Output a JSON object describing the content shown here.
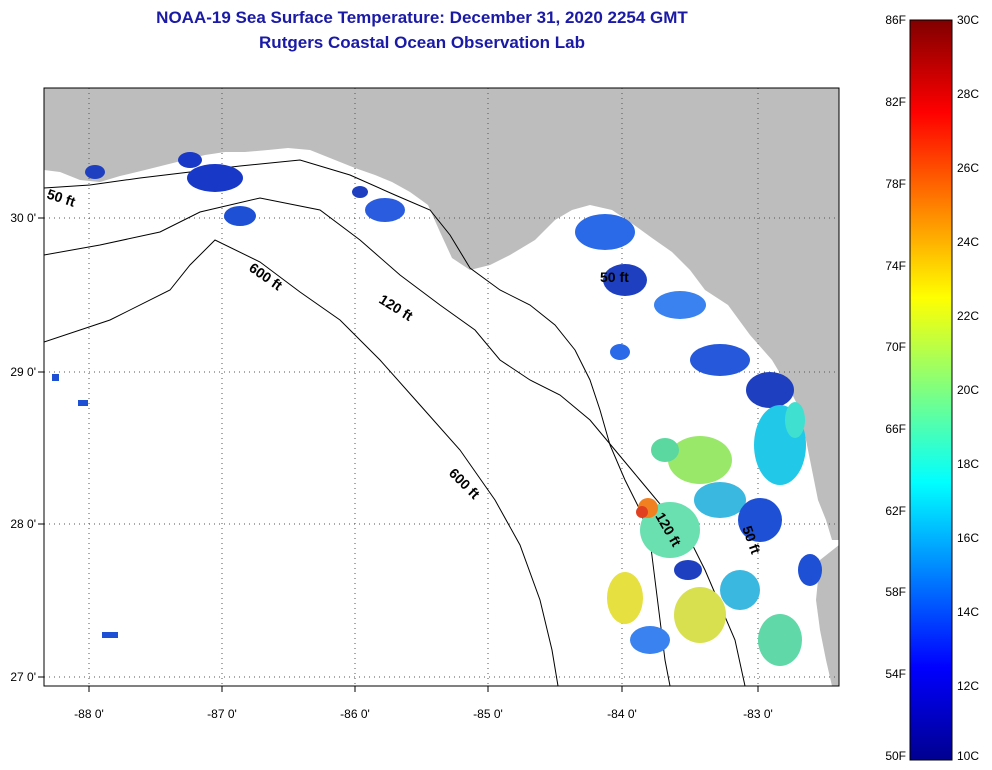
{
  "title": {
    "line1": "NOAA-19 Sea Surface Temperature:  December 31, 2020 2254 GMT",
    "line2": "Rutgers Coastal Ocean Observation Lab"
  },
  "map": {
    "x_ticks": [
      "-88 0'",
      "-87 0'",
      "-86 0'",
      "-85 0'",
      "-84 0'",
      "-83 0'"
    ],
    "y_ticks": [
      "30 0'",
      "29 0'",
      "28 0'",
      "27 0'"
    ],
    "contour_labels": [
      "50 ft",
      "600 ft",
      "120 ft",
      "600 ft",
      "50 ft",
      "120 ft",
      "50 ft"
    ],
    "land_color": "#bdbdbd",
    "water_color": "#ffffff"
  },
  "colorbar": {
    "fahrenheit_labels": [
      "86F",
      "82F",
      "78F",
      "74F",
      "70F",
      "66F",
      "62F",
      "58F",
      "54F",
      "50F"
    ],
    "celsius_labels": [
      "30C",
      "28C",
      "26C",
      "24C",
      "22C",
      "20C",
      "18C",
      "16C",
      "14C",
      "12C",
      "10C"
    ]
  }
}
